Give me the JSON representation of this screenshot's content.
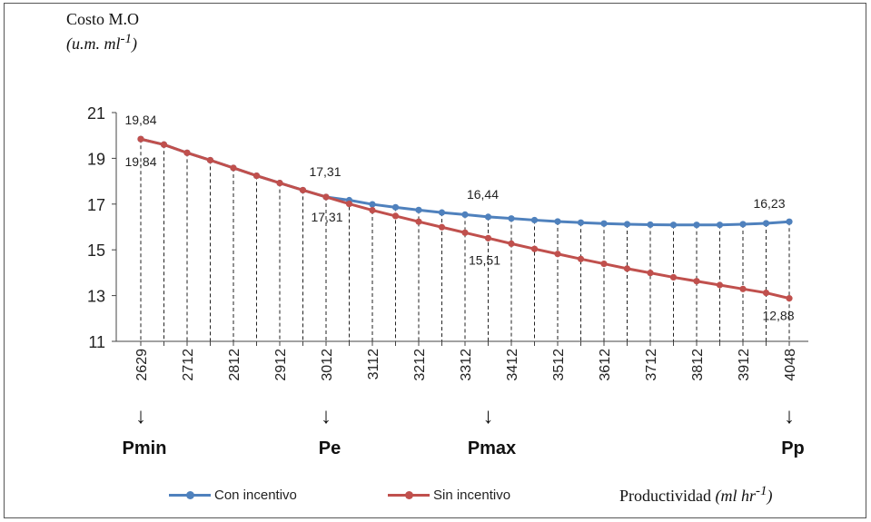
{
  "chart_data": {
    "type": "line",
    "title": "",
    "ylabel": {
      "main": "Costo M.O",
      "unit_prefix": "(u.m. ml",
      "unit_sup": "-1",
      "unit_suffix": ")"
    },
    "xlabel": {
      "main": "Productividad",
      "unit_prefix": "(ml hr",
      "unit_sup": "-1",
      "unit_suffix": ")"
    },
    "ylim": [
      11,
      21
    ],
    "yticks": [
      11,
      13,
      15,
      17,
      19,
      21
    ],
    "x": [
      2629,
      2662,
      2712,
      2762,
      2812,
      2862,
      2912,
      2962,
      3012,
      3062,
      3112,
      3162,
      3212,
      3262,
      3312,
      3362,
      3412,
      3462,
      3512,
      3562,
      3612,
      3662,
      3712,
      3762,
      3812,
      3862,
      3912,
      3962,
      4048
    ],
    "xtick_labels": [
      "2629",
      "2712",
      "2812",
      "2912",
      "3012",
      "3112",
      "3212",
      "3312",
      "3412",
      "3512",
      "3612",
      "3712",
      "3812",
      "3912",
      "4048"
    ],
    "series": [
      {
        "name": "Con incentivo",
        "color": "#4f81bd",
        "values": [
          19.84,
          19.6,
          19.24,
          18.92,
          18.58,
          18.24,
          17.92,
          17.61,
          17.31,
          17.17,
          16.99,
          16.86,
          16.74,
          16.63,
          16.54,
          16.44,
          16.37,
          16.3,
          16.24,
          16.19,
          16.15,
          16.12,
          16.1,
          16.09,
          16.09,
          16.09,
          16.12,
          16.16,
          16.23
        ]
      },
      {
        "name": "Sin incentivo",
        "color": "#c0504d",
        "values": [
          19.84,
          19.6,
          19.24,
          18.92,
          18.58,
          18.24,
          17.92,
          17.61,
          17.31,
          17.01,
          16.73,
          16.48,
          16.23,
          15.99,
          15.75,
          15.51,
          15.27,
          15.04,
          14.82,
          14.6,
          14.39,
          14.18,
          13.99,
          13.8,
          13.63,
          13.46,
          13.29,
          13.12,
          12.88
        ]
      }
    ],
    "data_labels": [
      {
        "index": 0,
        "series": 0,
        "text": "19,84"
      },
      {
        "index": 0,
        "series": 1,
        "text": "19,84"
      },
      {
        "index": 8,
        "series": 0,
        "text": "17,31"
      },
      {
        "index": 8,
        "series": 1,
        "text": "17,31"
      },
      {
        "index": 15,
        "series": 0,
        "text": "16,44"
      },
      {
        "index": 15,
        "series": 1,
        "text": "15,51"
      },
      {
        "index": 28,
        "series": 0,
        "text": "16,23"
      },
      {
        "index": 28,
        "series": 1,
        "text": "12,88"
      }
    ],
    "markers": [
      {
        "index": 0,
        "symbol": "↓",
        "label": "Pmin"
      },
      {
        "index": 8,
        "symbol": "↓",
        "label": "Pe"
      },
      {
        "index": 15,
        "symbol": "↓",
        "label": "Pmax"
      },
      {
        "index": 28,
        "symbol": "↓",
        "label": "Pp"
      }
    ],
    "drop_lines": "dashed",
    "legend_placement": "bottom-left"
  }
}
